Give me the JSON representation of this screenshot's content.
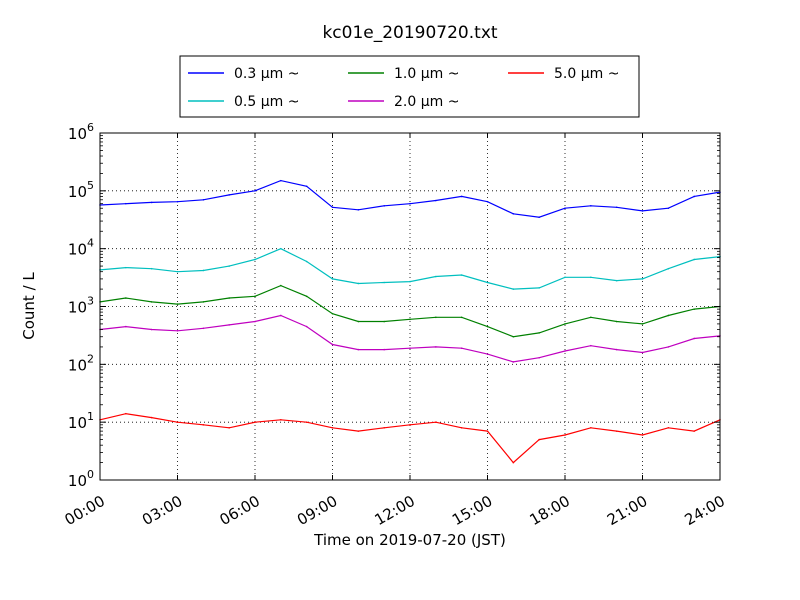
{
  "chart_data": {
    "type": "line",
    "title": "kc01e_20190720.txt",
    "xlabel": "Time on 2019-07-20 (JST)",
    "ylabel": "Count / L",
    "yscale": "log",
    "xlim": [
      "00:00",
      "24:00"
    ],
    "ylim": [
      1,
      1000000
    ],
    "x_ticks": [
      "00:00",
      "03:00",
      "06:00",
      "09:00",
      "12:00",
      "15:00",
      "18:00",
      "21:00",
      "24:00"
    ],
    "y_ticks": [
      {
        "base": "10",
        "exp": "0"
      },
      {
        "base": "10",
        "exp": "1"
      },
      {
        "base": "10",
        "exp": "2"
      },
      {
        "base": "10",
        "exp": "3"
      },
      {
        "base": "10",
        "exp": "4"
      },
      {
        "base": "10",
        "exp": "5"
      },
      {
        "base": "10",
        "exp": "6"
      }
    ],
    "grid": true,
    "legend_position": "top-center, outside plot",
    "x": [
      "00:00",
      "01:00",
      "02:00",
      "03:00",
      "04:00",
      "05:00",
      "06:00",
      "07:00",
      "08:00",
      "09:00",
      "10:00",
      "11:00",
      "12:00",
      "13:00",
      "14:00",
      "15:00",
      "16:00",
      "17:00",
      "18:00",
      "19:00",
      "20:00",
      "21:00",
      "22:00",
      "23:00",
      "24:00"
    ],
    "series": [
      {
        "name": "0.3 μm ~",
        "color": "#0000ff",
        "values": [
          57000,
          60000,
          63000,
          65000,
          70000,
          85000,
          100000,
          150000,
          120000,
          52000,
          47000,
          55000,
          60000,
          68000,
          80000,
          65000,
          40000,
          35000,
          50000,
          55000,
          52000,
          45000,
          50000,
          80000,
          95000
        ]
      },
      {
        "name": "0.5 μm ~",
        "color": "#00bfbf",
        "values": [
          4300,
          4700,
          4500,
          4000,
          4200,
          5000,
          6500,
          10000,
          6000,
          3000,
          2500,
          2600,
          2700,
          3300,
          3500,
          2600,
          2000,
          2100,
          3200,
          3200,
          2800,
          3000,
          4500,
          6500,
          7300
        ]
      },
      {
        "name": "1.0 μm ~",
        "color": "#008000",
        "values": [
          1200,
          1400,
          1200,
          1100,
          1200,
          1400,
          1500,
          2300,
          1500,
          750,
          550,
          550,
          600,
          650,
          650,
          450,
          300,
          350,
          500,
          650,
          550,
          500,
          700,
          900,
          1000
        ]
      },
      {
        "name": "2.0 μm ~",
        "color": "#bf00bf",
        "values": [
          400,
          450,
          400,
          380,
          420,
          480,
          550,
          700,
          450,
          220,
          180,
          180,
          190,
          200,
          190,
          150,
          110,
          130,
          170,
          210,
          180,
          160,
          200,
          280,
          310
        ]
      },
      {
        "name": "5.0 μm ~",
        "color": "#ff0000",
        "values": [
          11,
          14,
          12,
          10,
          9,
          8,
          10,
          11,
          10,
          8,
          7,
          8,
          9,
          10,
          8,
          7,
          2,
          5,
          6,
          8,
          7,
          6,
          8,
          7,
          11
        ]
      }
    ]
  }
}
